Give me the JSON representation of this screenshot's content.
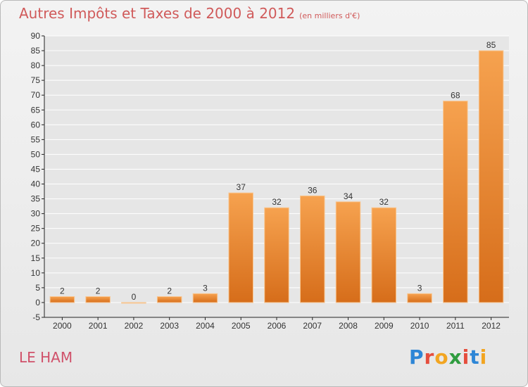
{
  "header": {
    "title": "Autres Impôts et Taxes de 2000 à 2012",
    "unit": "(en milliers d'€)"
  },
  "footer": {
    "commune": "LE HAM",
    "logo_text": "Proxiti"
  },
  "colors": {
    "bar_top": "#f6a24f",
    "bar_bottom": "#d66d1a",
    "title": "#d05a5a",
    "axis": "#222222",
    "grid": "#ffffff"
  },
  "chart_data": {
    "type": "bar",
    "categories": [
      "2000",
      "2001",
      "2002",
      "2003",
      "2004",
      "2005",
      "2006",
      "2007",
      "2008",
      "2009",
      "2010",
      "2011",
      "2012"
    ],
    "values": [
      2,
      2,
      0,
      2,
      3,
      37,
      32,
      36,
      34,
      32,
      3,
      68,
      85
    ],
    "data_labels": [
      "2",
      "2",
      "0",
      "2",
      "3",
      "37",
      "32",
      "36",
      "34",
      "32",
      "3",
      "68",
      "85"
    ],
    "ylim": [
      -5,
      90
    ],
    "yticks": [
      -5,
      0,
      5,
      10,
      15,
      20,
      25,
      30,
      35,
      40,
      45,
      50,
      55,
      60,
      65,
      70,
      75,
      80,
      85,
      90
    ],
    "grid": true,
    "title": "Autres Impôts et Taxes de 2000 à 2012",
    "xlabel": "",
    "ylabel": ""
  }
}
